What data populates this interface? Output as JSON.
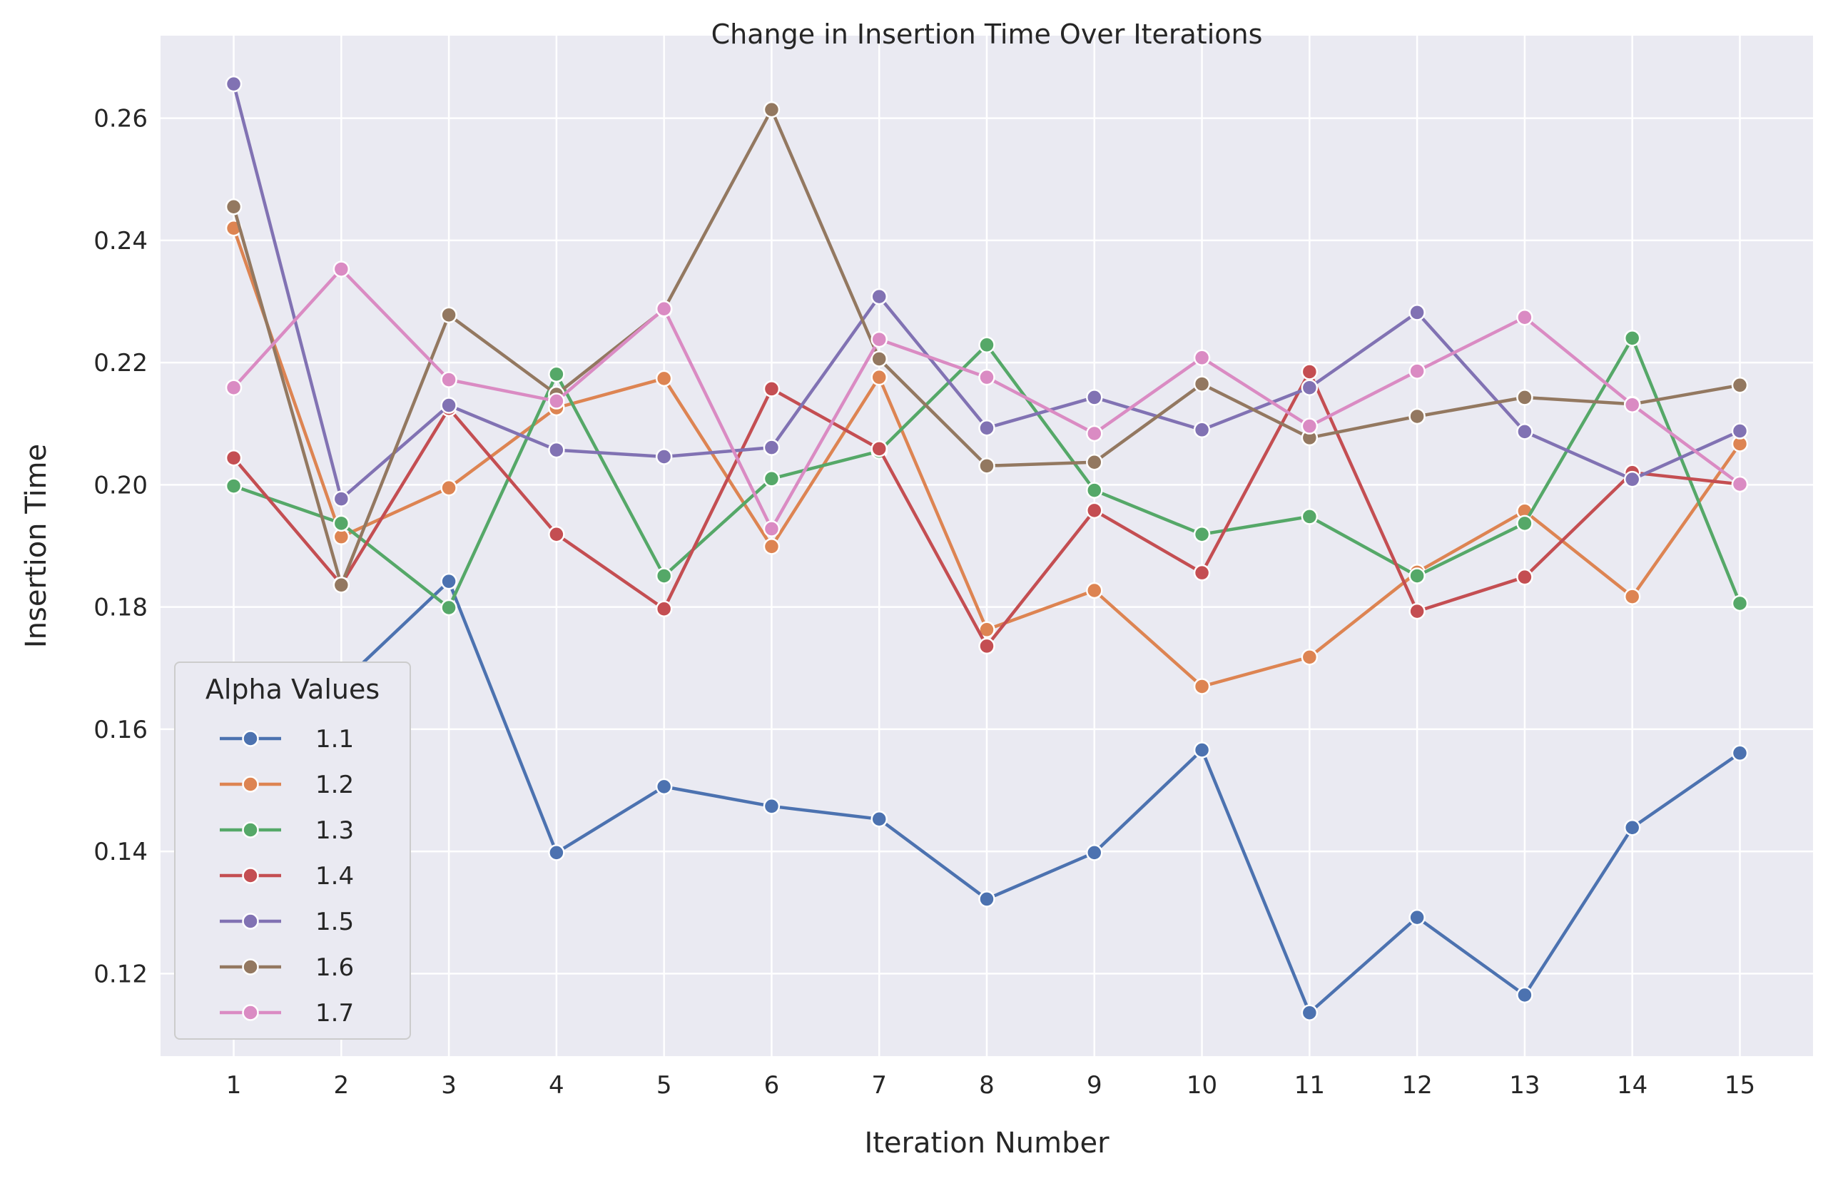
{
  "chart_data": {
    "type": "line",
    "title": "Change in Insertion Time Over Iterations",
    "xlabel": "Iteration Number",
    "ylabel": "Insertion Time",
    "x": [
      1,
      2,
      3,
      4,
      5,
      6,
      7,
      8,
      9,
      10,
      11,
      12,
      13,
      14,
      15
    ],
    "x_tick_labels": [
      "1",
      "2",
      "3",
      "4",
      "5",
      "6",
      "7",
      "8",
      "9",
      "10",
      "11",
      "12",
      "13",
      "14",
      "15"
    ],
    "xlim": [
      0.32,
      15.68
    ],
    "ylim": [
      0.1065,
      0.2735
    ],
    "y_ticks": [
      0.12,
      0.14,
      0.16,
      0.18,
      0.2,
      0.22,
      0.24,
      0.26
    ],
    "y_tick_labels": [
      "0.12",
      "0.14",
      "0.16",
      "0.18",
      "0.20",
      "0.22",
      "0.24",
      "0.26"
    ],
    "grid": true,
    "background": "#eaeaf2",
    "grid_color": "#ffffff",
    "legend": {
      "title": "Alpha Values",
      "position": "lower-left"
    },
    "series": [
      {
        "name": "1.1",
        "color": "#4c72b0",
        "values": [
          0.1535,
          0.1675,
          0.1842,
          0.1398,
          0.1506,
          0.1474,
          0.1453,
          0.1322,
          0.1398,
          0.1566,
          0.1136,
          0.1292,
          0.1165,
          0.1439,
          0.1561
        ]
      },
      {
        "name": "1.2",
        "color": "#dd8452",
        "values": [
          0.242,
          0.1915,
          0.1995,
          0.2126,
          0.2174,
          0.1899,
          0.2176,
          0.1763,
          0.1827,
          0.167,
          0.1718,
          0.1857,
          0.1957,
          0.1817,
          0.2067
        ]
      },
      {
        "name": "1.3",
        "color": "#55a868",
        "values": [
          0.1998,
          0.1937,
          0.1799,
          0.2181,
          0.1851,
          0.201,
          0.2055,
          0.2229,
          0.1991,
          0.1919,
          0.1948,
          0.1851,
          0.1937,
          0.224,
          0.1806
        ]
      },
      {
        "name": "1.4",
        "color": "#c44e52",
        "values": [
          0.2044,
          0.1837,
          0.2125,
          0.1919,
          0.1797,
          0.2157,
          0.2059,
          0.1736,
          0.1958,
          0.1856,
          0.2185,
          0.1793,
          0.1849,
          0.202,
          0.2001
        ]
      },
      {
        "name": "1.5",
        "color": "#8172b3",
        "values": [
          0.2656,
          0.1977,
          0.213,
          0.2057,
          0.2046,
          0.2061,
          0.2308,
          0.2093,
          0.2143,
          0.209,
          0.2159,
          0.2282,
          0.2087,
          0.2009,
          0.2088
        ]
      },
      {
        "name": "1.6",
        "color": "#937860",
        "values": [
          0.2455,
          0.1836,
          0.2278,
          0.2148,
          0.2287,
          0.2614,
          0.2206,
          0.2031,
          0.2037,
          0.2165,
          0.2077,
          0.2112,
          0.2143,
          0.2132,
          0.2163
        ]
      },
      {
        "name": "1.7",
        "color": "#da8bc3",
        "values": [
          0.2159,
          0.2353,
          0.2172,
          0.2137,
          0.2288,
          0.1928,
          0.2238,
          0.2176,
          0.2084,
          0.2208,
          0.2096,
          0.2186,
          0.2274,
          0.2131,
          0.2001
        ]
      }
    ]
  }
}
